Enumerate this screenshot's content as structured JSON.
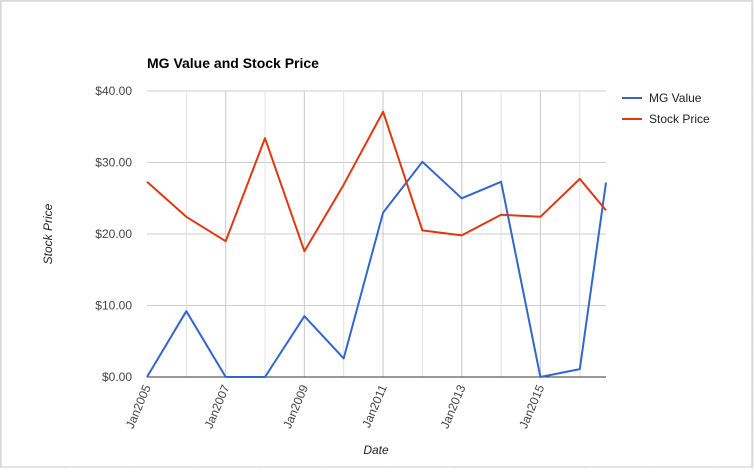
{
  "chart_data": {
    "type": "line",
    "title": "MG Value and Stock Price",
    "xlabel": "Date",
    "ylabel": "Stock Price",
    "x": [
      "2005-01",
      "2006-01",
      "2007-01",
      "2008-01",
      "2009-01",
      "2010-01",
      "2011-01",
      "2012-01",
      "2013-01",
      "2014-01",
      "2015-01",
      "2016-01",
      "2016-09"
    ],
    "x_tick_labels": [
      "Jan2005",
      "Jan2007",
      "Jan2009",
      "Jan2011",
      "Jan2013",
      "Jan2015"
    ],
    "y_tick_labels": [
      "$0.00",
      "$10.00",
      "$20.00",
      "$30.00",
      "$40.00"
    ],
    "ylim": [
      0,
      40
    ],
    "grid": true,
    "legend_position": "right",
    "series": [
      {
        "name": "MG Value",
        "color": "#3366cc",
        "values": [
          0,
          9.2,
          0,
          0,
          8.5,
          2.6,
          23,
          30.1,
          25,
          27.3,
          0,
          1.1,
          27.2
        ]
      },
      {
        "name": "Stock Price",
        "color": "#dc3912",
        "values": [
          27.3,
          22.4,
          19,
          33.4,
          17.6,
          26.9,
          37.1,
          20.5,
          19.8,
          22.7,
          22.4,
          27.7,
          23.3
        ]
      }
    ]
  }
}
